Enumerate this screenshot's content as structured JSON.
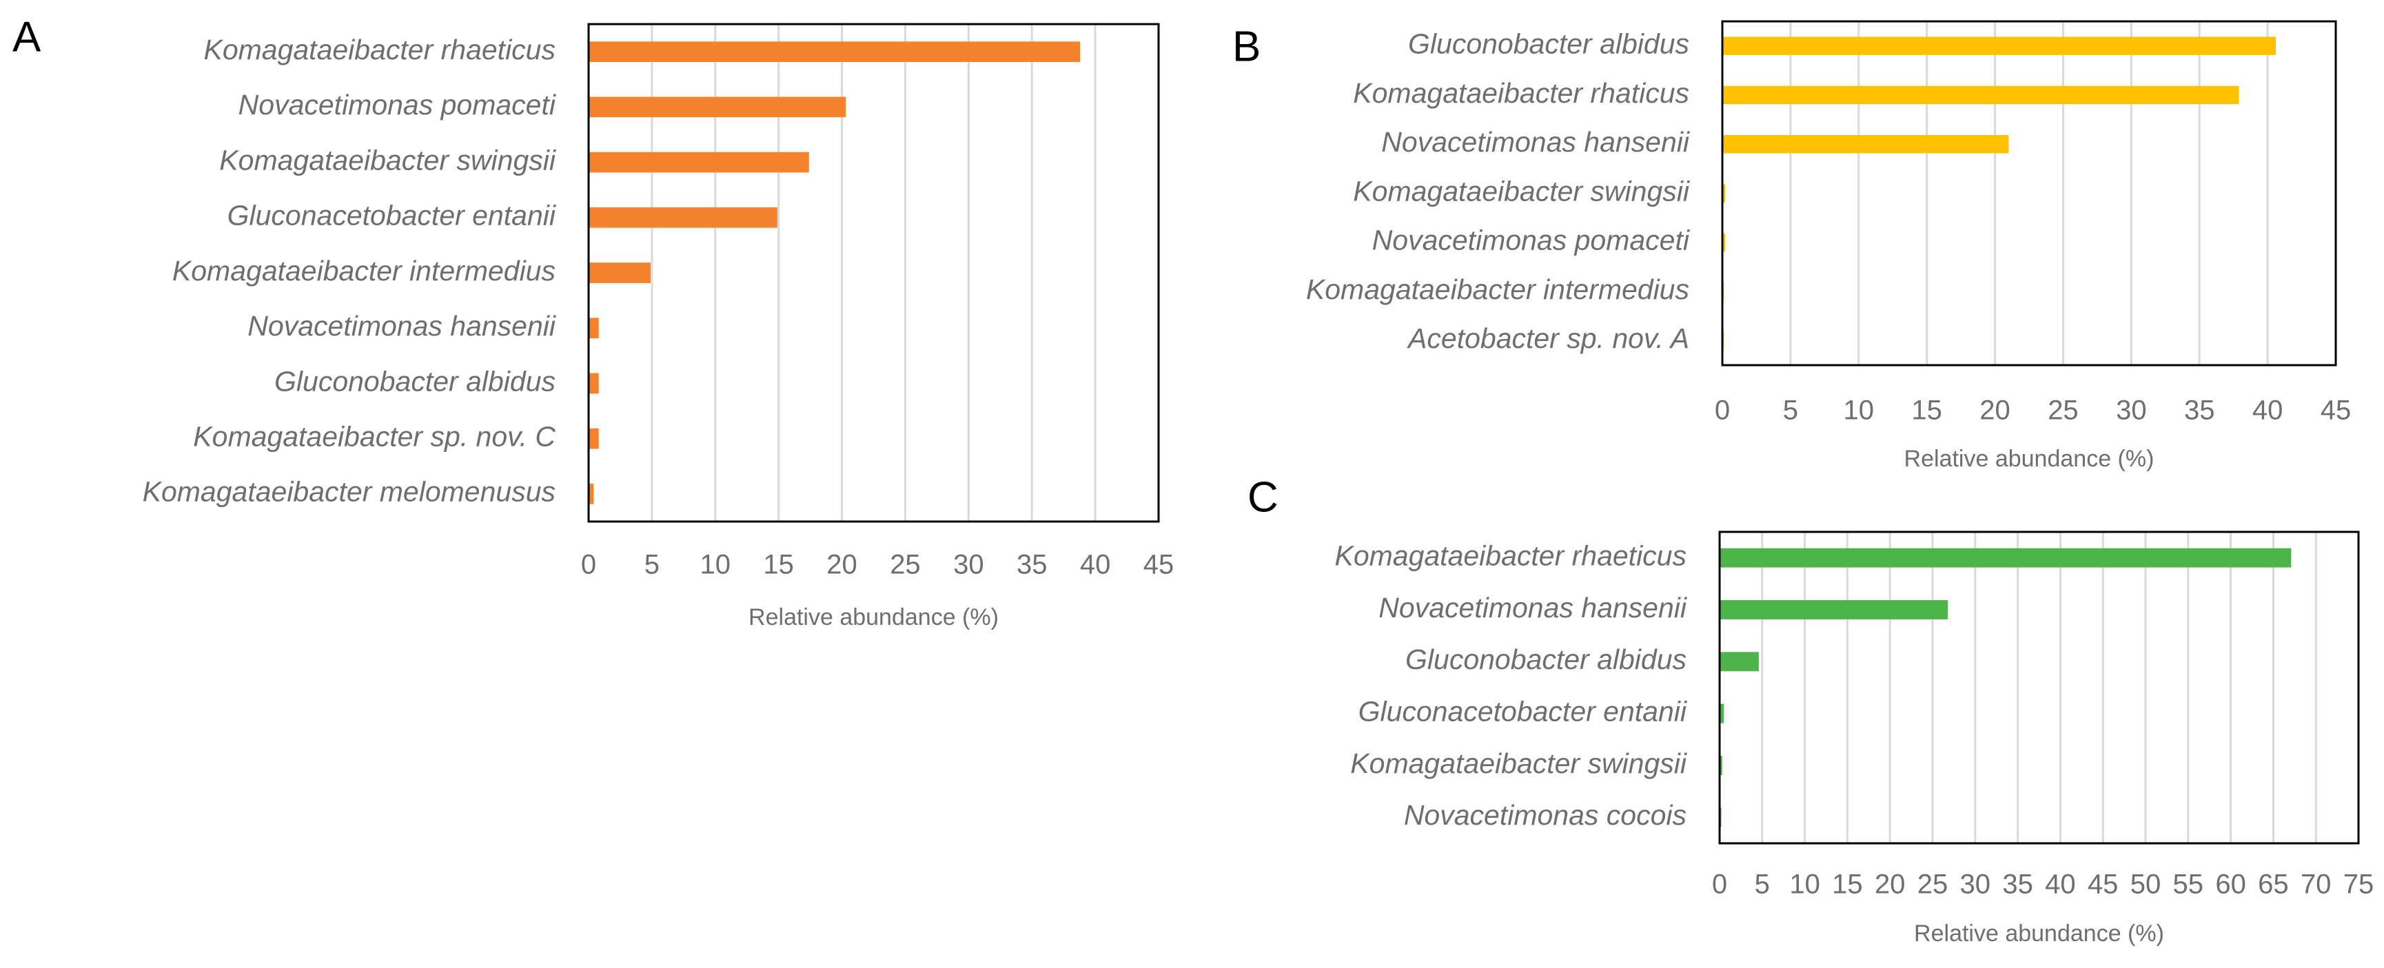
{
  "chart_data": [
    {
      "type": "barh",
      "panel": "A",
      "x_label": "Relative abundance (%)",
      "color": "#F5822D",
      "grid": true,
      "categories": [
        "Komagataeibacter rhaeticus",
        "Novacetimonas pomaceti",
        "Komagataeibacter swingsii",
        "Gluconacetobacter entanii",
        "Komagataeibacter intermedius",
        "Novacetimonas hansenii",
        "Gluconobacter albidus",
        "Komagataeibacter sp. nov. C",
        "Komagataeibacter melomenusus"
      ],
      "values": [
        38.8,
        20.3,
        17.4,
        14.9,
        4.9,
        0.8,
        0.8,
        0.8,
        0.4
      ],
      "xlim": [
        0,
        45
      ],
      "xticks": [
        0,
        5,
        10,
        15,
        20,
        25,
        30,
        35,
        40,
        45
      ]
    },
    {
      "type": "barh",
      "panel": "B",
      "x_label": "Relative abundance (%)",
      "color": "#FFC000",
      "grid": true,
      "categories": [
        "Gluconobacter albidus",
        "Komagataeibacter rhaticus",
        "Novacetimonas hansenii",
        "Komagataeibacter swingsii",
        "Novacetimonas pomaceti",
        "Komagataeibacter intermedius",
        "Acetobacter sp. nov. A"
      ],
      "values": [
        40.6,
        37.9,
        21,
        0.2,
        0.2,
        0.1,
        0.1
      ],
      "xlim": [
        0,
        45
      ],
      "xticks": [
        0,
        5,
        10,
        15,
        20,
        25,
        30,
        35,
        40,
        45
      ]
    },
    {
      "type": "barh",
      "panel": "C",
      "x_label": "Relative abundance (%)",
      "color": "#4CB448",
      "grid": true,
      "categories": [
        "Komagataeibacter rhaeticus",
        "Novacetimonas hansenii",
        "Gluconobacter albidus",
        "Gluconacetobacter entanii",
        "Komagataeibacter swingsii",
        "Novacetimonas cocois"
      ],
      "values": [
        67.1,
        26.8,
        4.6,
        0.5,
        0.3,
        0.2
      ],
      "xlim": [
        0,
        75
      ],
      "xticks": [
        0,
        5,
        10,
        15,
        20,
        25,
        30,
        35,
        40,
        45,
        50,
        55,
        60,
        65,
        70,
        75
      ]
    }
  ]
}
